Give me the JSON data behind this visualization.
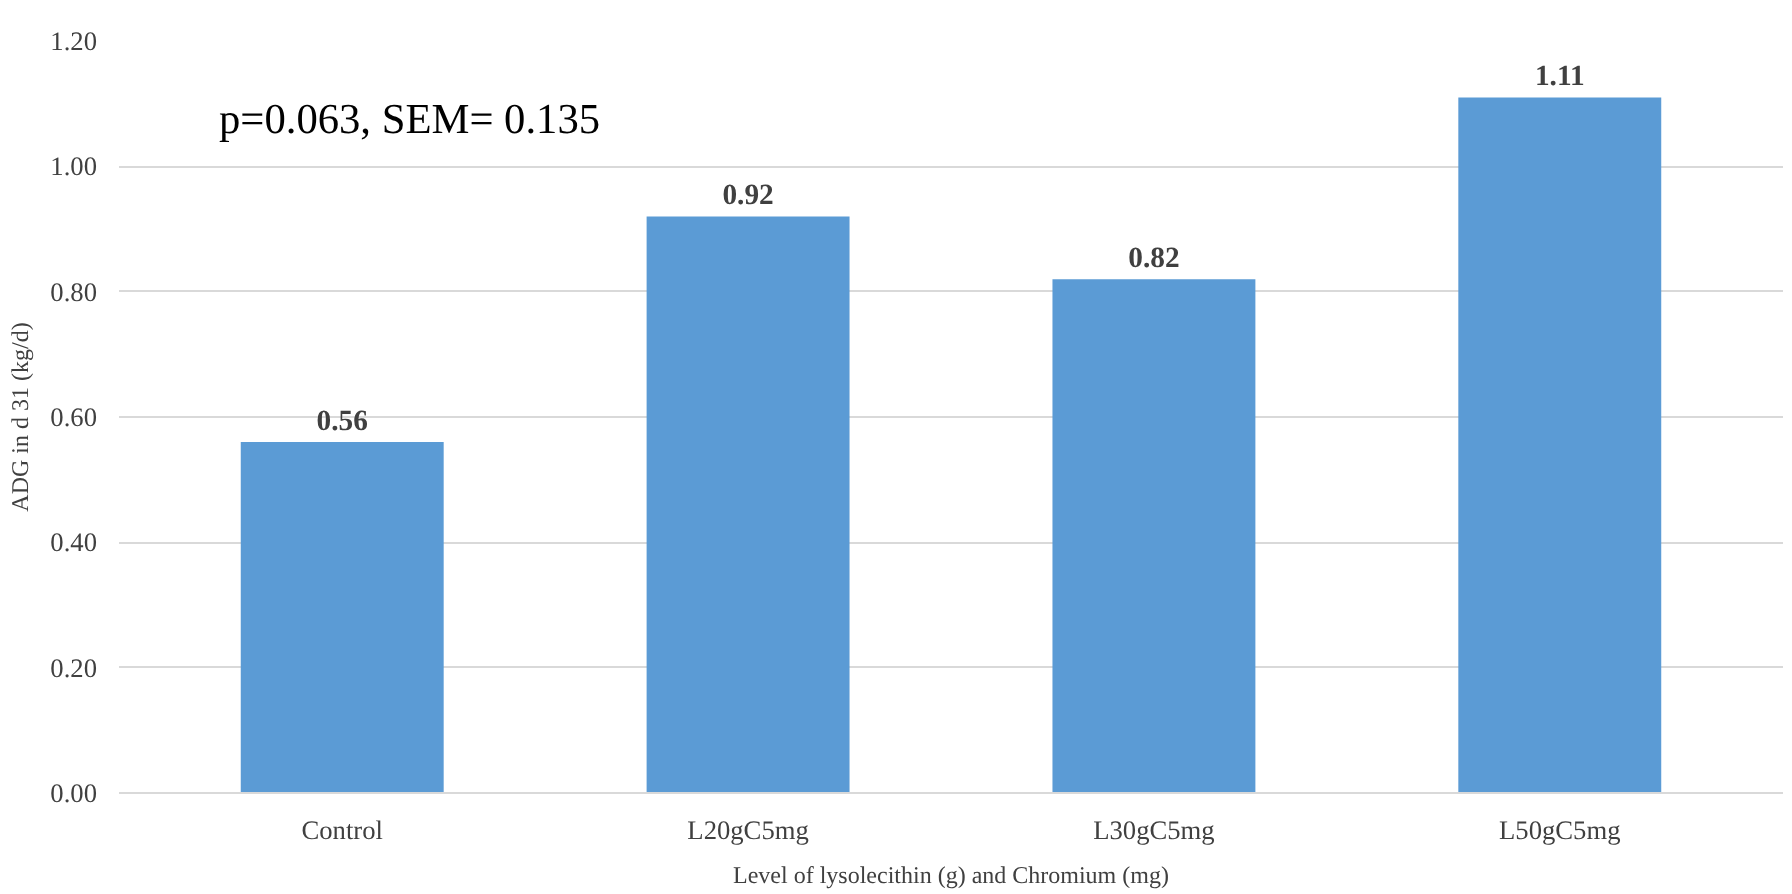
{
  "chart_data": {
    "type": "bar",
    "xlabel": "Level of lysolecithin (g) and Chromium (mg)",
    "ylabel": "ADG in d 31 (kg/d)",
    "categories": [
      "Control",
      "L20gC5mg",
      "L30gC5mg",
      "L50gC5mg"
    ],
    "values": [
      0.56,
      0.92,
      0.82,
      1.11
    ],
    "color": "#5b9bd5",
    "ylim": [
      0,
      1.2
    ],
    "yticks": [
      {
        "value": 0,
        "label": "0.00"
      },
      {
        "value": 0.2,
        "label": "0.20"
      },
      {
        "value": 0.4,
        "label": "0.40"
      },
      {
        "value": 0.6,
        "label": "0.60"
      },
      {
        "value": 0.8,
        "label": "0.80"
      },
      {
        "value": 1.0,
        "label": "1.00"
      },
      {
        "value": 1.2,
        "label": "1.20"
      }
    ],
    "grid": "y",
    "data_labels": true,
    "annotations": [
      "p=0.063, SEM= 0.135"
    ]
  }
}
